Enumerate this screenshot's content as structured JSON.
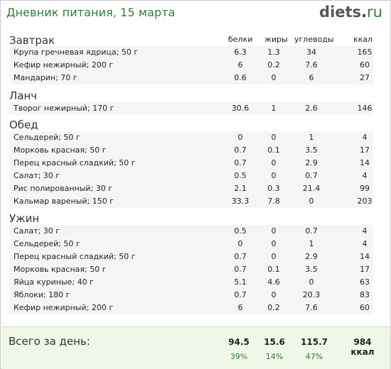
{
  "header": {
    "title": "Дневник питания, 15 марта",
    "logo_main": "diets",
    "logo_dot": ".",
    "logo_tld": "ru"
  },
  "columns": {
    "protein": "белки",
    "fat": "жиры",
    "carbs": "углеводы",
    "kcal": "ккал"
  },
  "meals": [
    {
      "title": "Завтрак",
      "items": [
        {
          "name": "Крупа гречневая ядрица; 50 г",
          "protein": "6.3",
          "fat": "1.3",
          "carbs": "34",
          "kcal": "165"
        },
        {
          "name": "Кефир нежирный; 200 г",
          "protein": "6",
          "fat": "0.2",
          "carbs": "7.6",
          "kcal": "60"
        },
        {
          "name": "Мандарин; 70 г",
          "protein": "0.6",
          "fat": "0",
          "carbs": "6",
          "kcal": "27"
        }
      ]
    },
    {
      "title": "Ланч",
      "items": [
        {
          "name": "Творог нежирный; 170 г",
          "protein": "30.6",
          "fat": "1",
          "carbs": "2.6",
          "kcal": "146"
        }
      ]
    },
    {
      "title": "Обед",
      "items": [
        {
          "name": "Сельдерей; 50 г",
          "protein": "0",
          "fat": "0",
          "carbs": "1",
          "kcal": "4"
        },
        {
          "name": "Морковь красная; 50 г",
          "protein": "0.7",
          "fat": "0.1",
          "carbs": "3.5",
          "kcal": "17"
        },
        {
          "name": "Перец красный сладкий; 50 г",
          "protein": "0.7",
          "fat": "0",
          "carbs": "2.9",
          "kcal": "14"
        },
        {
          "name": "Салат; 30 г",
          "protein": "0.5",
          "fat": "0",
          "carbs": "0.7",
          "kcal": "4"
        },
        {
          "name": "Рис полированный; 30 г",
          "protein": "2.1",
          "fat": "0.3",
          "carbs": "21.4",
          "kcal": "99"
        },
        {
          "name": "Кальмар вареный; 150 г",
          "protein": "33.3",
          "fat": "7.8",
          "carbs": "0",
          "kcal": "203"
        }
      ]
    },
    {
      "title": "Ужин",
      "items": [
        {
          "name": "Салат; 30 г",
          "protein": "0.5",
          "fat": "0",
          "carbs": "0.7",
          "kcal": "4"
        },
        {
          "name": "Сельдерей; 50 г",
          "protein": "0",
          "fat": "0",
          "carbs": "1",
          "kcal": "4"
        },
        {
          "name": "Перец красный сладкий; 50 г",
          "protein": "0.7",
          "fat": "0",
          "carbs": "2.9",
          "kcal": "14"
        },
        {
          "name": "Морковь красная; 50 г",
          "protein": "0.7",
          "fat": "0.1",
          "carbs": "3.5",
          "kcal": "17"
        },
        {
          "name": "Яйца куриные; 40 г",
          "protein": "5.1",
          "fat": "4.6",
          "carbs": "0",
          "kcal": "63"
        },
        {
          "name": "Яблоки; 180 г",
          "protein": "0.7",
          "fat": "0",
          "carbs": "20.3",
          "kcal": "83"
        },
        {
          "name": "Кефир нежирный; 200 г",
          "protein": "6",
          "fat": "0.2",
          "carbs": "7.6",
          "kcal": "60"
        }
      ]
    }
  ],
  "summary": {
    "label": "Всего за день:",
    "protein_total": "94.5",
    "fat_total": "15.6",
    "carbs_total": "115.7",
    "kcal_total": "984 ккал",
    "protein_pct": "39%",
    "fat_pct": "14%",
    "carbs_pct": "47%"
  }
}
